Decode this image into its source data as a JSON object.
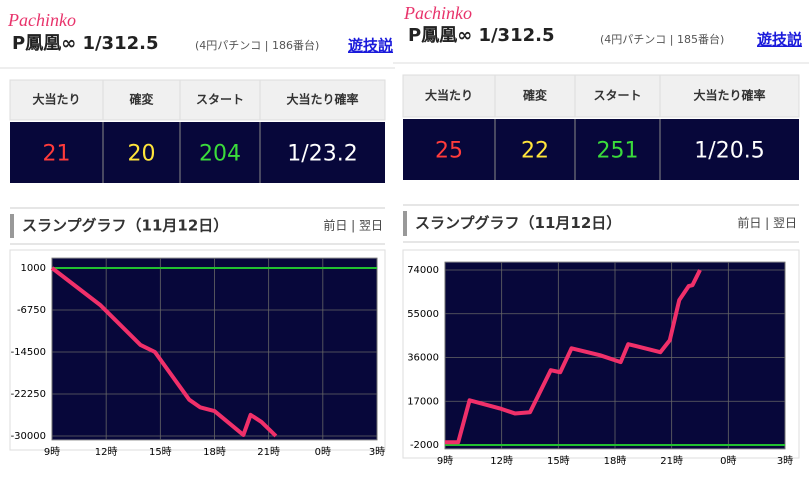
{
  "panels": [
    {
      "brand": "Pachinko",
      "title": "P鳳凰∞ 1/312.5",
      "info": "(4円パチンコ | 186番台)",
      "link": "遊技説",
      "stats": {
        "headers": [
          "大当たり",
          "確変",
          "スタート",
          "大当たり確率"
        ],
        "values": [
          21,
          20,
          204,
          "1/23.2"
        ],
        "colors": [
          "#ff3b3b",
          "#ffe43b",
          "#3bdc3b",
          "#ffffff"
        ]
      },
      "graph_title": "スランプグラフ（11月12日）",
      "graph_nav": "前日 | 翌日",
      "chart_data": {
        "type": "line",
        "x": [
          9.0,
          11.66,
          13.9,
          14.7,
          16.6,
          17.2,
          18.0,
          19.6,
          20.0,
          20.6,
          21.4
        ],
        "series": [
          {
            "color": "#f0306a",
            "values": [
              1000,
              -5800,
              -13200,
              -14500,
              -23300,
              -24700,
              -25400,
              -29800,
              -26100,
              -27400,
              -30000
            ]
          }
        ],
        "xlim": [
          9,
          27
        ],
        "xticks": [
          {
            "value": 9,
            "label": "9時"
          },
          {
            "value": 12,
            "label": "12時"
          },
          {
            "value": 15,
            "label": "15時"
          },
          {
            "value": 18,
            "label": "18時"
          },
          {
            "value": 21,
            "label": "21時"
          },
          {
            "value": 24,
            "label": "0時"
          },
          {
            "value": 27,
            "label": "3時"
          }
        ],
        "ylim": [
          -30000,
          1000
        ],
        "yticks": [
          1000,
          -6750,
          -14500,
          -22250,
          -30000
        ],
        "grid": true,
        "reference_line": {
          "value": 1000,
          "color": "#22c030"
        }
      }
    },
    {
      "brand": "Pachinko",
      "title": "P鳳凰∞ 1/312.5",
      "info": "(4円パチンコ | 185番台)",
      "link": "遊技説",
      "stats": {
        "headers": [
          "大当たり",
          "確変",
          "スタート",
          "大当たり確率"
        ],
        "values": [
          25,
          22,
          251,
          "1/20.5"
        ],
        "colors": [
          "#ff3b3b",
          "#ffe43b",
          "#3bdc3b",
          "#ffffff"
        ]
      },
      "graph_title": "スランプグラフ（11月12日）",
      "graph_nav": "前日 | 翌日",
      "chart_data": {
        "type": "line",
        "x": [
          9.0,
          9.7,
          10.3,
          11.9,
          12.7,
          13.5,
          14.6,
          15.1,
          15.7,
          17.2,
          18.3,
          18.7,
          20.4,
          20.9,
          21.4,
          21.9,
          22.1,
          22.5
        ],
        "series": [
          {
            "color": "#f0306a",
            "values": [
              -800,
              -800,
              17400,
              13900,
              11700,
              12200,
              30500,
              29600,
              40000,
              37000,
              34000,
              41800,
              38300,
              43500,
              60900,
              67000,
              67400,
              74000
            ]
          }
        ],
        "xlim": [
          9,
          27
        ],
        "xticks": [
          {
            "value": 9,
            "label": "9時"
          },
          {
            "value": 12,
            "label": "12時"
          },
          {
            "value": 15,
            "label": "15時"
          },
          {
            "value": 18,
            "label": "18時"
          },
          {
            "value": 21,
            "label": "21時"
          },
          {
            "value": 24,
            "label": "0時"
          },
          {
            "value": 27,
            "label": "3時"
          }
        ],
        "ylim": [
          -2000,
          74000
        ],
        "yticks": [
          74000,
          55000,
          36000,
          17000,
          -2000
        ],
        "grid": true,
        "reference_line": {
          "value": -2000,
          "color": "#22c030"
        }
      }
    }
  ]
}
